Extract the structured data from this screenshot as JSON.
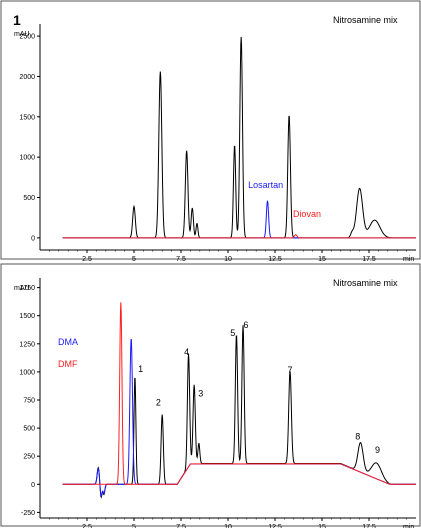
{
  "chart_data": [
    {
      "type": "line",
      "panel_label": "1",
      "title": "Nitrosamine mix",
      "ylabel": "mAU",
      "xlabel": "min",
      "xlim": [
        0,
        20
      ],
      "ylim": [
        -150,
        2600
      ],
      "xticks": [
        "2.5",
        "5",
        "7.5",
        "10",
        "12.5",
        "15",
        "17.5"
      ],
      "yticks": [
        "0",
        "500",
        "1000",
        "1500",
        "2000",
        "2500"
      ],
      "grid": false,
      "series": [
        {
          "color": "#000000",
          "baseline": 0,
          "peaks": [
            {
              "t": 5.0,
              "h": 390,
              "w": 0.07
            },
            {
              "t": 6.4,
              "h": 2060,
              "w": 0.08
            },
            {
              "t": 7.8,
              "h": 1080,
              "w": 0.07
            },
            {
              "t": 8.1,
              "h": 370,
              "w": 0.06
            },
            {
              "t": 8.35,
              "h": 180,
              "w": 0.05
            },
            {
              "t": 10.35,
              "h": 1150,
              "w": 0.06
            },
            {
              "t": 10.7,
              "h": 2490,
              "w": 0.07
            },
            {
              "t": 13.25,
              "h": 1520,
              "w": 0.07
            },
            {
              "t": 16.6,
              "h": 60,
              "w": 0.08
            },
            {
              "t": 17.0,
              "h": 610,
              "w": 0.16
            },
            {
              "t": 17.8,
              "h": 220,
              "w": 0.28
            }
          ]
        },
        {
          "color": "#1a1aff",
          "baseline": 0,
          "peaks": [
            {
              "t": 12.1,
              "h": 460,
              "w": 0.06
            }
          ]
        },
        {
          "color": "#ff2020",
          "baseline": 0,
          "peaks": [
            {
              "t": 13.6,
              "h": 40,
              "w": 0.07
            }
          ]
        }
      ],
      "annotations": [
        {
          "text": "Losartan",
          "x": 12.0,
          "y": 620,
          "color": "#1a1aff"
        },
        {
          "text": "Diovan",
          "x": 14.2,
          "y": 260,
          "color": "#ff2020"
        }
      ]
    },
    {
      "type": "line",
      "title": "Nitrosamine mix",
      "ylabel": "mAU",
      "xlabel": "min",
      "xlim": [
        0,
        20
      ],
      "ylim": [
        -300,
        1800
      ],
      "xticks": [
        "2.5",
        "5",
        "7.5",
        "10",
        "12.5",
        "15",
        "17.5"
      ],
      "yticks": [
        "-250",
        "0",
        "250",
        "500",
        "750",
        "1000",
        "1250",
        "1500",
        "1750"
      ],
      "grid": false,
      "legend": [
        {
          "text": "DMA",
          "color": "#1a1aff"
        },
        {
          "text": "DMF",
          "color": "#ff2020"
        }
      ],
      "series": [
        {
          "color": "#000000",
          "plateau": {
            "start": 7.3,
            "full": 8.0,
            "end": 16.0,
            "drop": 18.6,
            "level": 185
          },
          "peaks": [
            {
              "t": 3.1,
              "h": 150,
              "w": 0.06
            },
            {
              "t": 3.25,
              "h": -120,
              "w": 0.05
            },
            {
              "t": 3.4,
              "h": -90,
              "w": 0.05
            },
            {
              "t": 5.05,
              "h": 960,
              "w": 0.05
            },
            {
              "t": 6.5,
              "h": 620,
              "w": 0.06
            },
            {
              "t": 7.9,
              "h": 1000,
              "w": 0.06
            },
            {
              "t": 8.2,
              "h": 700,
              "w": 0.06
            },
            {
              "t": 8.45,
              "h": 180,
              "w": 0.05
            },
            {
              "t": 10.45,
              "h": 1150,
              "w": 0.06
            },
            {
              "t": 10.8,
              "h": 1230,
              "w": 0.06
            },
            {
              "t": 13.3,
              "h": 820,
              "w": 0.07
            },
            {
              "t": 17.05,
              "h": 260,
              "w": 0.14
            },
            {
              "t": 17.9,
              "h": 140,
              "w": 0.26
            }
          ]
        },
        {
          "color": "#1a1aff",
          "plateau": {
            "start": 7.3,
            "full": 8.0,
            "end": 16.0,
            "drop": 18.6,
            "level": 180
          },
          "peaks": [
            {
              "t": 3.1,
              "h": 140,
              "w": 0.06
            },
            {
              "t": 3.25,
              "h": -110,
              "w": 0.05
            },
            {
              "t": 3.4,
              "h": -80,
              "w": 0.05
            },
            {
              "t": 4.85,
              "h": 1300,
              "w": 0.07
            }
          ]
        },
        {
          "color": "#ff2020",
          "plateau": {
            "start": 7.3,
            "full": 8.0,
            "end": 16.0,
            "drop": 18.6,
            "level": 182
          },
          "peaks": [
            {
              "t": 4.3,
              "h": 1620,
              "w": 0.06
            }
          ]
        }
      ],
      "peak_labels": [
        {
          "text": "1",
          "x": 5.35,
          "y": 1000
        },
        {
          "text": "2",
          "x": 6.3,
          "y": 700
        },
        {
          "text": "3",
          "x": 8.55,
          "y": 780
        },
        {
          "text": "4",
          "x": 7.8,
          "y": 1150
        },
        {
          "text": "5",
          "x": 10.25,
          "y": 1320
        },
        {
          "text": "6",
          "x": 10.95,
          "y": 1390
        },
        {
          "text": "7",
          "x": 13.3,
          "y": 990
        },
        {
          "text": "8",
          "x": 16.9,
          "y": 400
        },
        {
          "text": "9",
          "x": 17.95,
          "y": 280
        }
      ]
    }
  ]
}
